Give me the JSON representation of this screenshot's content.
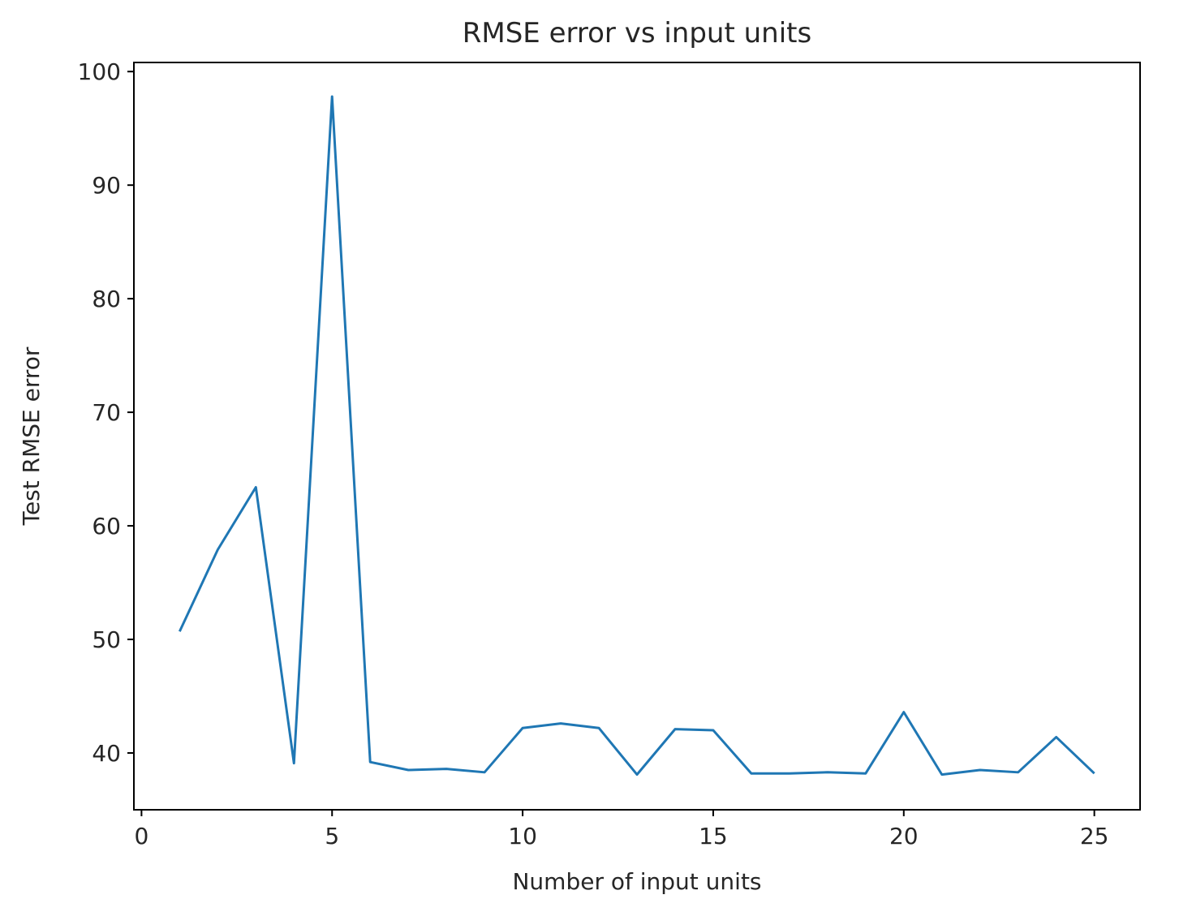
{
  "chart_data": {
    "type": "line",
    "title": "RMSE error vs input units",
    "xlabel": "Number of input units",
    "ylabel": "Test RMSE error",
    "xlim": [
      -0.2,
      26.2
    ],
    "ylim": [
      35,
      100.8
    ],
    "xticks": [
      0,
      5,
      10,
      15,
      20,
      25
    ],
    "yticks": [
      40,
      50,
      60,
      70,
      80,
      90,
      100
    ],
    "grid": false,
    "legend": "none",
    "series": [
      {
        "color": "#1f77b4",
        "x": [
          1,
          2,
          3,
          4,
          5,
          6,
          7,
          8,
          9,
          10,
          11,
          12,
          13,
          14,
          15,
          16,
          17,
          18,
          19,
          20,
          21,
          22,
          23,
          24,
          25
        ],
        "y": [
          50.7,
          57.9,
          63.4,
          39.1,
          97.8,
          39.2,
          38.5,
          38.6,
          38.3,
          42.2,
          42.6,
          42.2,
          38.1,
          42.1,
          42.0,
          38.2,
          38.2,
          38.3,
          38.2,
          43.6,
          38.1,
          38.5,
          38.3,
          41.4,
          38.2
        ]
      }
    ]
  }
}
